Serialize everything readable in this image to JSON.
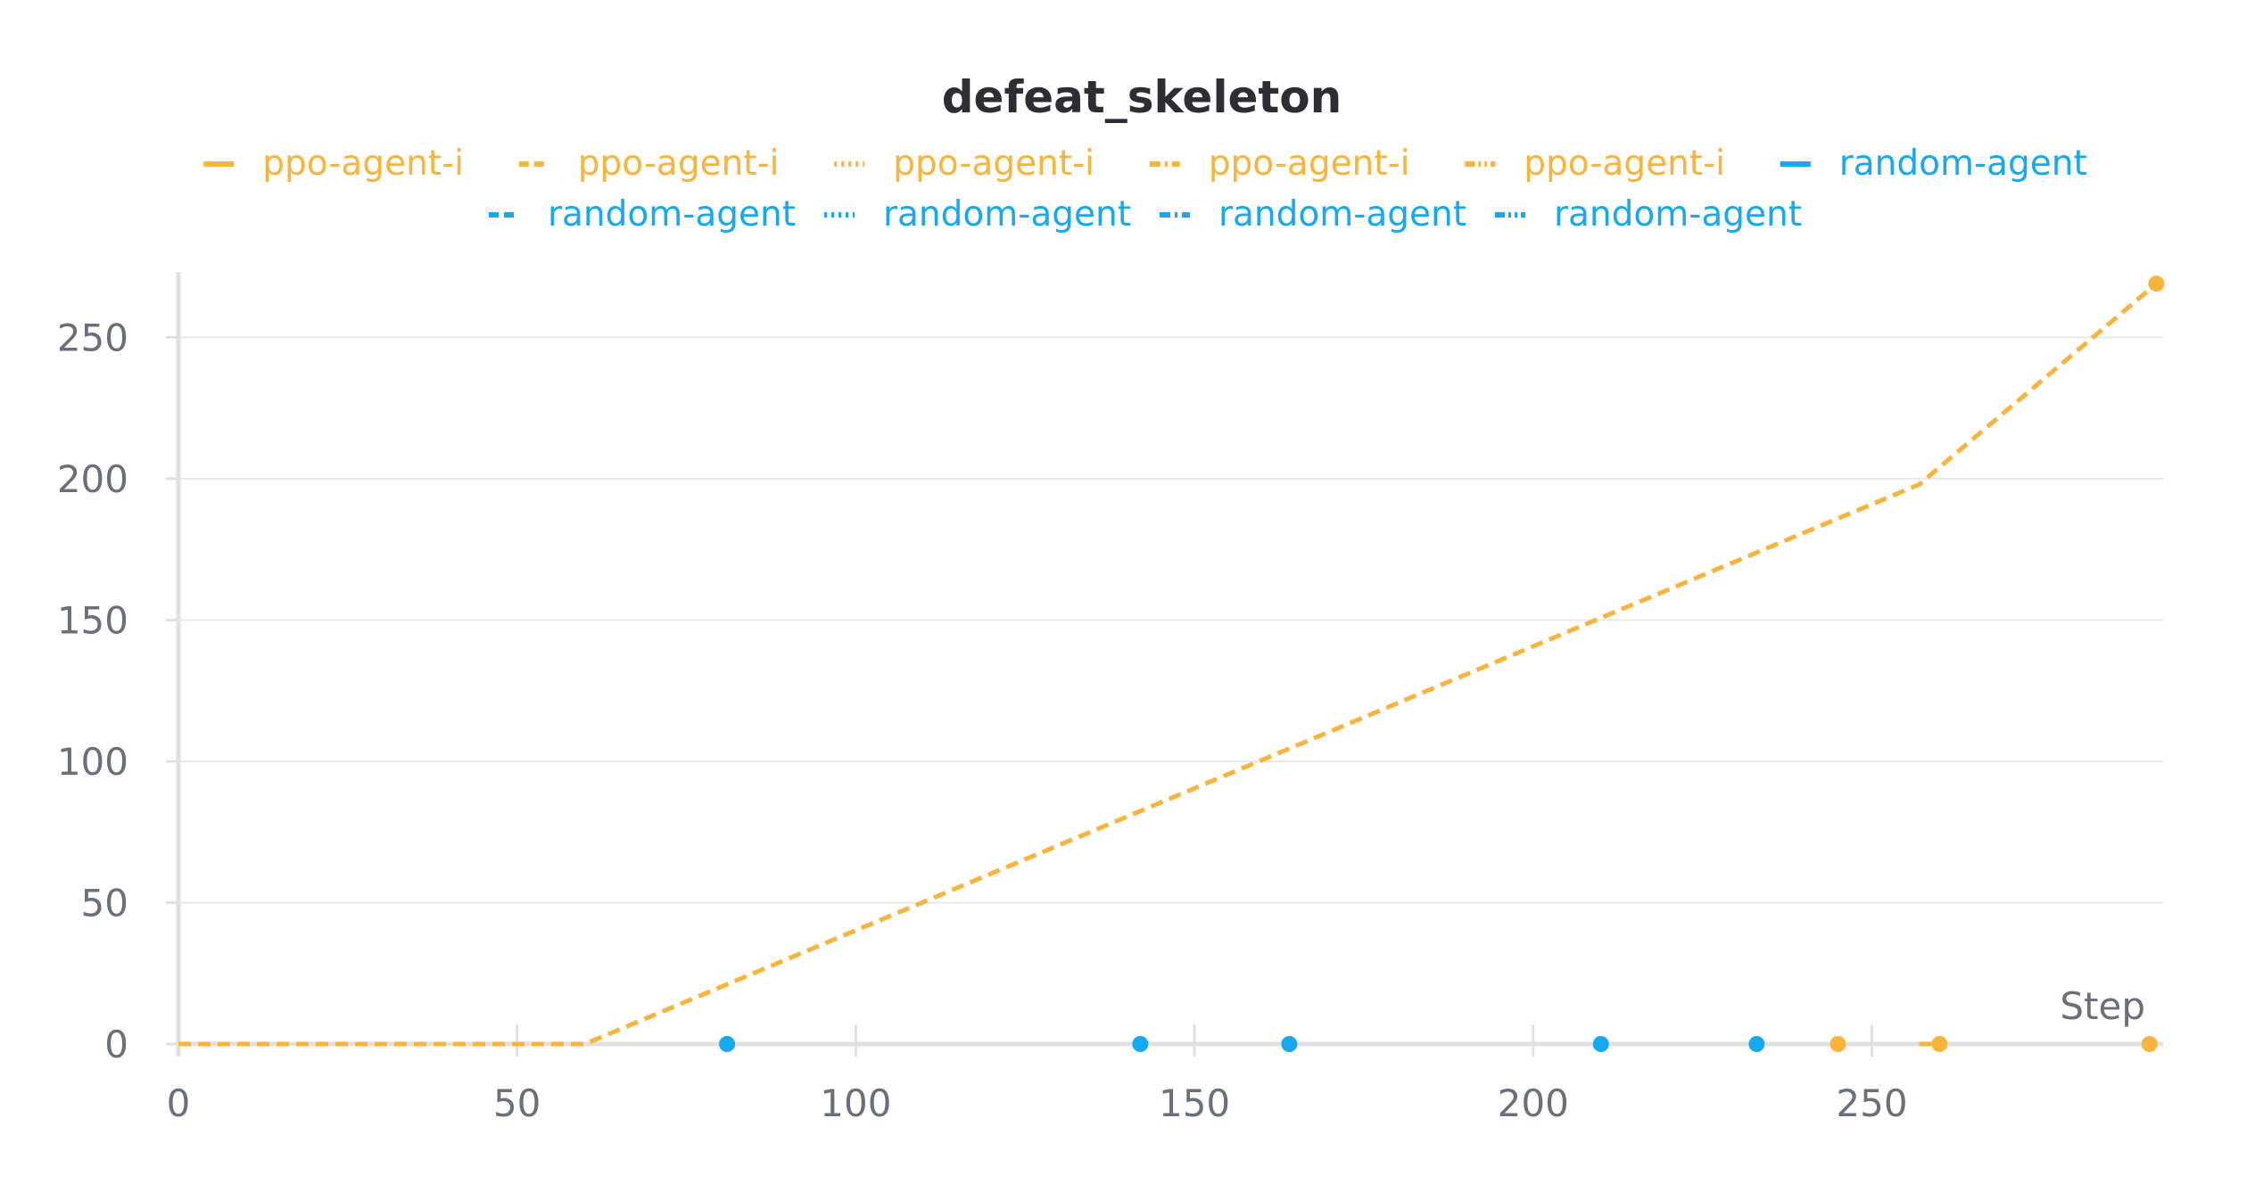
{
  "chart_data": {
    "type": "line",
    "title": "defeat_skeleton",
    "xlabel": "Step",
    "ylabel": "",
    "xlim": [
      0,
      293
    ],
    "ylim": [
      0,
      270
    ],
    "x_ticks": [
      0,
      50,
      100,
      150,
      200,
      250
    ],
    "y_ticks": [
      0,
      50,
      100,
      150,
      200,
      250
    ],
    "grid": "horizontal",
    "legend_position": "top-center",
    "colors": {
      "ppo": "#f9b43b",
      "random": "#17a9f0"
    },
    "series": [
      {
        "name": "ppo-agent-i",
        "dash": "solid",
        "color": "#f9b43b",
        "points": []
      },
      {
        "name": "ppo-agent-i",
        "dash": "dashed",
        "color": "#f9b43b",
        "points": [
          [
            0,
            0
          ],
          [
            60,
            0
          ],
          [
            257,
            198
          ],
          [
            292,
            269
          ]
        ]
      },
      {
        "name": "ppo-agent-i",
        "dash": "dotted",
        "color": "#f9b43b",
        "points": [
          [
            245,
            0
          ]
        ]
      },
      {
        "name": "ppo-agent-i",
        "dash": "dash-dot",
        "color": "#f9b43b",
        "points": [
          [
            257,
            0
          ],
          [
            260,
            0
          ]
        ]
      },
      {
        "name": "ppo-agent-i",
        "dash": "dash-dot-dot",
        "color": "#f9b43b",
        "points": [
          [
            291,
            0
          ]
        ]
      },
      {
        "name": "random-agent",
        "dash": "solid",
        "color": "#17a9f0",
        "points": [
          [
            81,
            0
          ]
        ]
      },
      {
        "name": "random-agent",
        "dash": "dashed",
        "color": "#17a9f0",
        "points": [
          [
            142,
            0
          ]
        ]
      },
      {
        "name": "random-agent",
        "dash": "dotted",
        "color": "#17a9f0",
        "points": [
          [
            164,
            0
          ]
        ]
      },
      {
        "name": "random-agent",
        "dash": "dash-dot",
        "color": "#17a9f0",
        "points": [
          [
            210,
            0
          ]
        ]
      },
      {
        "name": "random-agent",
        "dash": "dash-dot-dot",
        "color": "#17a9f0",
        "points": [
          [
            233,
            0
          ]
        ]
      }
    ]
  }
}
